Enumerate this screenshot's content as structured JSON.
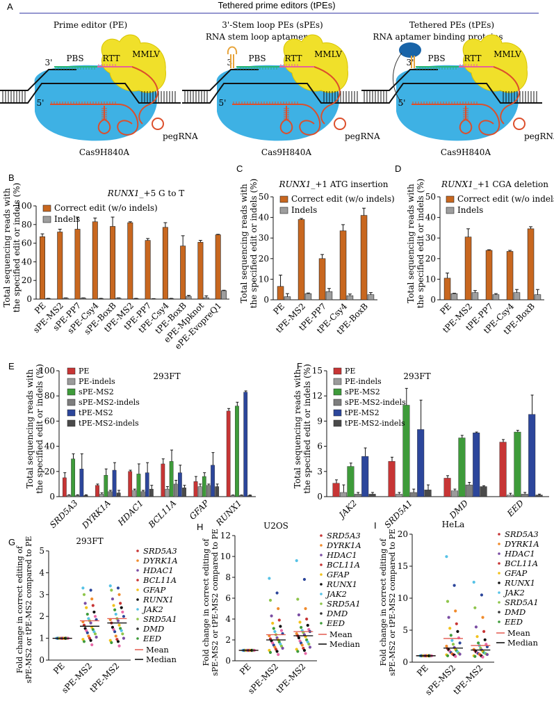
{
  "figure": {
    "header": "Tethered prime editors (tPEs)",
    "panel_letters": [
      "A",
      "B",
      "C",
      "D",
      "E",
      "F",
      "G",
      "H",
      "I"
    ],
    "colors": {
      "cas9": "#3eb1e4",
      "mmlv": "#f0e02a",
      "mmlv_edge": "#d8c400",
      "peg_red": "#dc4f2c",
      "pbs_green": "#2bb573",
      "rtt_pink": "#e8609a",
      "aptamer_orange": "#e7a339",
      "binding_protein": "#1964a8",
      "correct": "#c8671f",
      "indels": "#9e9e9e",
      "pe": "#c73535",
      "pe_indels": "#9b9b9b",
      "spe": "#3e9b3a",
      "spe_indels": "#7d7d7d",
      "tpe": "#2c469b",
      "tpe_indels": "#4a4a4a",
      "mean_line": "#e2584e",
      "median_line": "#000000"
    },
    "schematic": {
      "panels": [
        {
          "title": "Prime editor (PE)",
          "sub": ""
        },
        {
          "title": "3'-Stem loop PEs (sPEs)",
          "sub": "RNA stem loop aptamers"
        },
        {
          "title": "Tethered PEs (tPEs)",
          "sub": "RNA aptamer binding proteins"
        }
      ],
      "labels": {
        "pbs": "PBS",
        "rtt": "RTT",
        "mmlv": "MMLV",
        "three_prime": "3'",
        "five_prime": "5'",
        "pegrna": "pegRNA",
        "cas9": "Cas9H840A"
      }
    },
    "legend_ce": {
      "correct": "Correct edit (w/o indels)",
      "indels": "Indels"
    },
    "legend_ef": {
      "items": [
        "PE",
        "PE-indels",
        "sPE-MS2",
        "sPE-MS2-indels",
        "tPE-MS2",
        "tPE-MS2-indels"
      ]
    },
    "legend_ghi": {
      "genes": [
        "SRD5A3",
        "DYRK1A",
        "HDAC1",
        "BCL11A",
        "GFAP",
        "RUNX1",
        "JAK2",
        "SRD5A1",
        "DMD",
        "EED"
      ],
      "mean": "Mean",
      "median": "Median"
    },
    "cell_lines": {
      "e": "293FT",
      "f": "293FT",
      "g": "293FT",
      "h": "U2OS",
      "i": "HeLa"
    }
  },
  "chart_data": [
    {
      "panel": "B",
      "type": "bar",
      "title": "RUNX1_+5 G to T",
      "ylabel": "Total sequencing reads with the specified edit or indels (%)",
      "ylim": [
        0,
        100
      ],
      "yticks": [
        0,
        20,
        40,
        60,
        80,
        100
      ],
      "categories": [
        "PE",
        "sPE-MS2",
        "sPE-PP7",
        "sPE-Csy4",
        "sPE-BoxB",
        "tPE-MS2",
        "tPE-PP7",
        "tPE-Csy4",
        "tPE-BoxB",
        "ePE-Mpknot",
        "ePE-EvopreQ1"
      ],
      "series": [
        {
          "name": "Correct edit (w/o indels)",
          "values": [
            67,
            72,
            75,
            83,
            78,
            82,
            63,
            77,
            57,
            61,
            69
          ],
          "errors": [
            3,
            3,
            13,
            4,
            10,
            1,
            2,
            5,
            11,
            2,
            0.5
          ]
        },
        {
          "name": "Indels",
          "values": [
            0.5,
            1,
            1,
            0.5,
            1,
            0.5,
            0.3,
            0.5,
            3,
            1.5,
            9
          ],
          "errors": [
            0.3,
            0.3,
            0.3,
            0.3,
            0.3,
            0.3,
            0.2,
            0.3,
            1,
            2,
            0.5
          ]
        }
      ]
    },
    {
      "panel": "C",
      "type": "bar",
      "title": "RUNX1_+1 ATG insertion",
      "ylabel": "Total sequencing reads with the specified edit or indels (%)",
      "ylim": [
        0,
        50
      ],
      "yticks": [
        0,
        10,
        20,
        30,
        40,
        50
      ],
      "categories": [
        "PE",
        "tPE-MS2",
        "tPE-PP7",
        "tPE-Csy4",
        "tPE-BoxB"
      ],
      "series": [
        {
          "name": "Correct edit (w/o indels)",
          "values": [
            6.5,
            39,
            20,
            33.5,
            41
          ],
          "errors": [
            5.5,
            0.5,
            2,
            3,
            3.5
          ]
        },
        {
          "name": "Indels",
          "values": [
            1.5,
            3,
            4,
            2,
            2.5
          ],
          "errors": [
            1.5,
            0.3,
            1.5,
            0.8,
            1
          ]
        }
      ]
    },
    {
      "panel": "D",
      "type": "bar",
      "title": "RUNX1_+1 CGA deletion",
      "ylabel": "Total sequencing reads with the specified edit or indels (%)",
      "ylim": [
        0,
        50
      ],
      "yticks": [
        0,
        10,
        20,
        30,
        40,
        50
      ],
      "categories": [
        "PE",
        "tPE-MS2",
        "tPE-PP7",
        "tPE-Csy4",
        "tPE-BoxB"
      ],
      "series": [
        {
          "name": "Correct edit (w/o indels)",
          "values": [
            10.5,
            30.5,
            24,
            23.5,
            34.5
          ],
          "errors": [
            2.5,
            4,
            0.3,
            0.5,
            1
          ]
        },
        {
          "name": "Indels",
          "values": [
            3,
            3.5,
            2.5,
            3.5,
            2.5
          ],
          "errors": [
            0.2,
            1,
            0.5,
            1.5,
            2.5
          ]
        }
      ]
    },
    {
      "panel": "E",
      "type": "bar",
      "title": "293FT",
      "ylabel": "Total sequencing reads with the specified edit or indels (%)",
      "ylim": [
        0,
        100
      ],
      "yticks": [
        0,
        20,
        40,
        60,
        80,
        100
      ],
      "categories": [
        "SRD5A3",
        "DYRK1A",
        "HDAC1",
        "BCL11A",
        "GFAP",
        "RUNX1"
      ],
      "series": [
        {
          "name": "PE",
          "values": [
            15,
            9,
            20,
            26,
            12,
            68
          ],
          "errors": [
            4,
            1,
            1,
            4,
            4,
            2
          ]
        },
        {
          "name": "PE-indels",
          "values": [
            1,
            2,
            5,
            6,
            8,
            1
          ],
          "errors": [
            0.5,
            1,
            1,
            2,
            2,
            0.3
          ]
        },
        {
          "name": "sPE-MS2",
          "values": [
            30,
            17,
            18,
            28,
            16,
            72
          ],
          "errors": [
            4,
            5,
            8,
            9,
            3,
            3
          ]
        },
        {
          "name": "sPE-MS2-indels",
          "values": [
            1,
            4,
            4,
            10,
            9,
            1
          ],
          "errors": [
            0.5,
            1,
            1,
            3,
            1,
            0.3
          ]
        },
        {
          "name": "tPE-MS2",
          "values": [
            22,
            21,
            19,
            19,
            25,
            83
          ],
          "errors": [
            12,
            6,
            8,
            6,
            10,
            1
          ]
        },
        {
          "name": "tPE-MS2-indels",
          "values": [
            1,
            3,
            6,
            7,
            8,
            1
          ],
          "errors": [
            0.5,
            2,
            3,
            2,
            2,
            0.3
          ]
        }
      ]
    },
    {
      "panel": "F",
      "type": "bar",
      "title": "293FT",
      "ylabel": "Total sequencing reads with the specified edit or indels (%)",
      "ylim": [
        0,
        15
      ],
      "yticks": [
        0,
        3,
        6,
        9,
        12,
        15
      ],
      "categories": [
        "JAK2",
        "SRD5A1",
        "DMD",
        "EED"
      ],
      "series": [
        {
          "name": "PE",
          "values": [
            1.6,
            4.2,
            2.2,
            6.5
          ],
          "errors": [
            0.4,
            0.5,
            0.3,
            0.3
          ]
        },
        {
          "name": "PE-indels",
          "values": [
            0.5,
            0.3,
            0.7,
            0.2
          ],
          "errors": [
            0.9,
            0.2,
            0.2,
            0.2
          ]
        },
        {
          "name": "sPE-MS2",
          "values": [
            3.6,
            10.9,
            7,
            7.7
          ],
          "errors": [
            0.4,
            2,
            0.3,
            0.2
          ]
        },
        {
          "name": "sPE-MS2-indels",
          "values": [
            0.3,
            0.5,
            1.4,
            0.3
          ],
          "errors": [
            0.2,
            0.4,
            0.3,
            0.2
          ]
        },
        {
          "name": "tPE-MS2",
          "values": [
            4.8,
            8,
            7.6,
            9.8
          ],
          "errors": [
            1,
            3.5,
            0.1,
            2.3
          ]
        },
        {
          "name": "tPE-MS2-indels",
          "values": [
            0.3,
            0.8,
            1.2,
            0.2
          ],
          "errors": [
            0.2,
            0.6,
            0.1,
            0.1
          ]
        }
      ]
    },
    {
      "panel": "G",
      "type": "scatter",
      "title": "293FT",
      "ylabel": "Fold change in correct editing of sPE-MS2 or tPE-MS2 compared to PE",
      "ylim": [
        0,
        5
      ],
      "yticks": [
        0,
        1,
        2,
        3,
        4,
        5
      ],
      "categories": [
        "PE",
        "sPE-MS2",
        "tPE-MS2"
      ],
      "series": [
        {
          "name": "PE",
          "values": [
            1,
            1,
            1,
            1,
            1,
            1,
            1,
            1,
            1,
            1,
            1,
            1,
            1,
            1,
            1,
            1,
            1,
            1,
            1,
            1,
            1,
            1,
            1,
            1,
            1,
            1,
            1,
            1,
            1,
            1
          ],
          "mean": 1,
          "median": 1
        },
        {
          "name": "sPE-MS2",
          "values": [
            3.3,
            3.2,
            3.0,
            2.8,
            2.6,
            2.5,
            2.4,
            2.2,
            2.1,
            2.0,
            1.9,
            1.85,
            1.8,
            1.75,
            1.7,
            1.6,
            1.5,
            1.45,
            1.4,
            1.35,
            1.3,
            1.25,
            1.2,
            1.1,
            1.05,
            1.0,
            0.95,
            0.9,
            0.85,
            0.7
          ],
          "mean": 1.8,
          "median": 1.55
        },
        {
          "name": "tPE-MS2",
          "values": [
            3.4,
            3.3,
            3.2,
            3.0,
            2.8,
            2.6,
            2.5,
            2.4,
            2.3,
            2.2,
            2.1,
            2.0,
            1.9,
            1.85,
            1.8,
            1.7,
            1.6,
            1.5,
            1.45,
            1.4,
            1.35,
            1.3,
            1.2,
            1.1,
            1.0,
            0.95,
            0.9,
            0.85,
            0.8,
            0.65
          ],
          "mean": 1.9,
          "median": 1.7
        }
      ]
    },
    {
      "panel": "H",
      "type": "scatter",
      "title": "U2OS",
      "ylabel": "Fold change in correct editing of sPE-MS2 or tPE-MS2 compared to PE",
      "ylim": [
        0,
        12
      ],
      "yticks": [
        0,
        2,
        4,
        6,
        8,
        10,
        12
      ],
      "categories": [
        "PE",
        "sPE-MS2",
        "tPE-MS2"
      ],
      "series": [
        {
          "name": "PE",
          "values": [
            1,
            1,
            1,
            1,
            1,
            1,
            1,
            1,
            1,
            1,
            1,
            1,
            1,
            1,
            1,
            1,
            1,
            1,
            1,
            1,
            1,
            1,
            1,
            1,
            1,
            1,
            1,
            1,
            1,
            1
          ],
          "mean": 1,
          "median": 1
        },
        {
          "name": "sPE-MS2",
          "values": [
            7.9,
            6.5,
            5.8,
            5.0,
            4.3,
            3.9,
            3.6,
            3.3,
            3.1,
            2.9,
            2.8,
            2.6,
            2.5,
            2.4,
            2.2,
            2.1,
            2.0,
            1.9,
            1.8,
            1.7,
            1.6,
            1.5,
            1.4,
            1.3,
            1.2,
            1.1,
            1.0,
            0.9,
            0.8,
            0.6
          ],
          "mean": 2.5,
          "median": 2.0
        },
        {
          "name": "tPE-MS2",
          "values": [
            9.6,
            7.8,
            5.9,
            5.0,
            4.4,
            4.0,
            3.7,
            3.4,
            3.2,
            3.0,
            2.9,
            2.8,
            2.7,
            2.6,
            2.5,
            2.4,
            2.3,
            2.2,
            2.0,
            1.9,
            1.8,
            1.7,
            1.6,
            1.5,
            1.3,
            1.2,
            1.1,
            1.0,
            0.9,
            0.7
          ],
          "mean": 2.8,
          "median": 2.4
        }
      ]
    },
    {
      "panel": "I",
      "type": "scatter",
      "title": "HeLa",
      "ylabel": "Fold change in correct editing of sPE-MS2 or tPE-MS2 compared to PE",
      "ylim": [
        0,
        20
      ],
      "yticks": [
        0,
        5,
        10,
        15,
        20
      ],
      "categories": [
        "PE",
        "sPE-MS2",
        "tPE-MS2"
      ],
      "series": [
        {
          "name": "PE",
          "values": [
            1,
            1,
            1,
            1,
            1,
            1,
            1,
            1,
            1,
            1,
            1,
            1,
            1,
            1,
            1,
            1,
            1,
            1,
            1,
            1,
            1,
            1,
            1,
            1,
            1,
            1,
            1,
            1,
            1,
            1
          ],
          "mean": 1,
          "median": 1
        },
        {
          "name": "sPE-MS2",
          "values": [
            16.5,
            12.0,
            9.5,
            8.0,
            7.0,
            6.0,
            5.3,
            4.8,
            4.2,
            3.8,
            3.4,
            3.0,
            2.8,
            2.5,
            2.3,
            2.1,
            2.0,
            1.9,
            1.8,
            1.7,
            1.6,
            1.5,
            1.4,
            1.3,
            1.25,
            1.2,
            1.15,
            1.1,
            1.0,
            0.9
          ],
          "mean": 3.7,
          "median": 2.2
        },
        {
          "name": "tPE-MS2",
          "values": [
            12.5,
            10.5,
            8.5,
            7.0,
            5.5,
            4.8,
            4.0,
            3.5,
            3.0,
            2.8,
            2.6,
            2.4,
            2.2,
            2.0,
            1.9,
            1.8,
            1.7,
            1.6,
            1.5,
            1.45,
            1.4,
            1.35,
            1.3,
            1.25,
            1.2,
            1.1,
            1.0,
            0.95,
            0.9,
            0.8
          ],
          "mean": 2.6,
          "median": 1.9
        }
      ]
    }
  ]
}
